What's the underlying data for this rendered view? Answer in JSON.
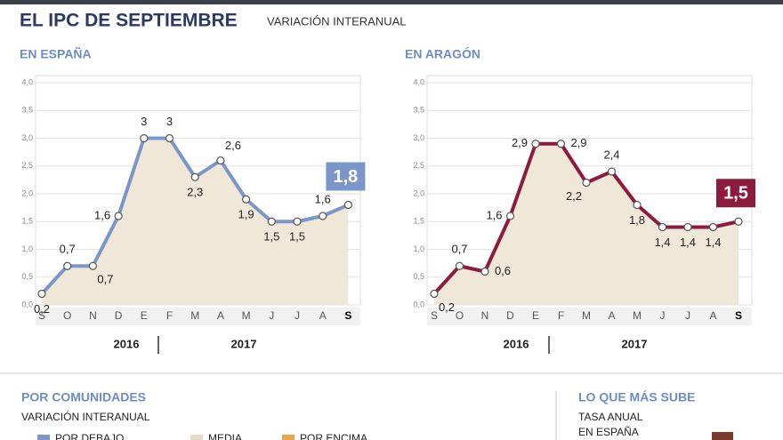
{
  "header": {
    "title": "EL IPC DE SEPTIEMBRE",
    "subtitle": "VARIACIÓN INTERANUAL"
  },
  "chart_data": [
    {
      "type": "line",
      "title": "EN ESPAÑA",
      "categories": [
        "S",
        "O",
        "N",
        "D",
        "E",
        "F",
        "M",
        "A",
        "M",
        "J",
        "J",
        "A",
        "S"
      ],
      "year_labels": [
        "2016",
        "2017"
      ],
      "series": [
        {
          "name": "España",
          "color": "#7b97c9",
          "values": [
            0.2,
            0.7,
            0.7,
            1.6,
            3,
            3,
            2.3,
            2.6,
            1.9,
            1.5,
            1.5,
            1.6,
            1.8
          ],
          "value_labels": [
            "0,2",
            "0,7",
            "0,7",
            "1,6",
            "3",
            "3",
            "2,3",
            "2,6",
            "1,9",
            "1,5",
            "1,5",
            "1,6",
            "1,8"
          ]
        }
      ],
      "ylim": [
        0,
        4
      ],
      "yticks": [
        {
          "value": 0,
          "label": "0,0"
        },
        {
          "value": 0.5,
          "label": "0,5"
        },
        {
          "value": 1,
          "label": "1,0"
        },
        {
          "value": 1.5,
          "label": "1,5"
        },
        {
          "value": 2,
          "label": "2,0"
        },
        {
          "value": 2.5,
          "label": "2,5"
        },
        {
          "value": 3,
          "label": "3,0"
        },
        {
          "value": 3.5,
          "label": "3,5"
        },
        {
          "value": 4,
          "label": "4,0"
        }
      ],
      "grid": true,
      "area_color": "#efe7d8"
    },
    {
      "type": "line",
      "title": "EN ARAGÓN",
      "categories": [
        "S",
        "O",
        "N",
        "D",
        "E",
        "F",
        "M",
        "A",
        "M",
        "J",
        "J",
        "A",
        "S"
      ],
      "year_labels": [
        "2016",
        "2017"
      ],
      "series": [
        {
          "name": "Aragón",
          "color": "#8c1c3e",
          "values": [
            0.2,
            0.7,
            0.6,
            1.6,
            2.9,
            2.9,
            2.2,
            2.4,
            1.8,
            1.4,
            1.4,
            1.4,
            1.5
          ],
          "value_labels": [
            "0,2",
            "0,7",
            "0,6",
            "1,6",
            "2,9",
            "2,9",
            "2,2",
            "2,4",
            "1,8",
            "1,4",
            "1,4",
            "1,4",
            "1,5"
          ]
        }
      ],
      "ylim": [
        0,
        4
      ],
      "yticks": [
        {
          "value": 0,
          "label": "0,0"
        },
        {
          "value": 0.5,
          "label": "0,5"
        },
        {
          "value": 1,
          "label": "1,0"
        },
        {
          "value": 1.5,
          "label": "1,5"
        },
        {
          "value": 2,
          "label": "2,0"
        },
        {
          "value": 2.5,
          "label": "2,5"
        },
        {
          "value": 3,
          "label": "3,0"
        },
        {
          "value": 3.5,
          "label": "3,5"
        },
        {
          "value": 4,
          "label": "4,0"
        }
      ],
      "grid": true,
      "area_color": "#efe7d8"
    }
  ],
  "bottom": {
    "left_title": "POR COMUNIDADES",
    "left_subtitle": "VARIACIÓN INTERANUAL",
    "legend": [
      "POR DEBAJO",
      "MEDIA",
      "POR ENCIMA"
    ],
    "right_title": "LO QUE MÁS SUBE",
    "right_subtitle": [
      "TASA ANUAL",
      "EN ESPAÑA"
    ]
  }
}
